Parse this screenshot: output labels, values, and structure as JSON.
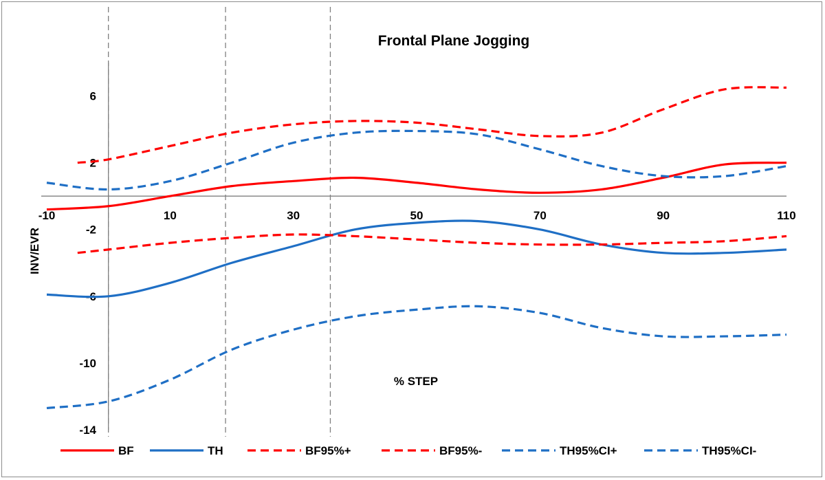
{
  "chart_data": {
    "type": "line",
    "title": "Frontal Plane Jogging",
    "xlabel": "% STEP",
    "ylabel": "INV/EVR",
    "xlim": [
      -10,
      110
    ],
    "ylim": [
      -14,
      8
    ],
    "x_ticks": [
      -10,
      10,
      30,
      50,
      70,
      90,
      110
    ],
    "x_tick_labels": [
      "-10",
      "10",
      "30",
      "50",
      "70",
      "90",
      "110"
    ],
    "y_ticks": [
      6,
      2,
      -2,
      -6,
      -10,
      -14
    ],
    "y_tick_labels": [
      "6",
      "2",
      "-2",
      "-6",
      "-10",
      "-14"
    ],
    "vertical_markers": [
      0,
      19,
      36
    ],
    "grid": false,
    "legend_position": "bottom",
    "series": [
      {
        "name": "BF",
        "color": "#ff0000",
        "dash": "solid",
        "x": [
          -10,
          0,
          10,
          20,
          30,
          40,
          50,
          60,
          70,
          80,
          90,
          100,
          110
        ],
        "y": [
          -0.8,
          -0.6,
          0.0,
          0.6,
          0.9,
          1.1,
          0.8,
          0.4,
          0.2,
          0.4,
          1.1,
          1.9,
          2.0
        ]
      },
      {
        "name": "TH",
        "color": "#1f6fc5",
        "dash": "solid",
        "x": [
          -10,
          0,
          10,
          20,
          30,
          40,
          50,
          60,
          70,
          80,
          90,
          100,
          110
        ],
        "y": [
          -5.9,
          -6.0,
          -5.2,
          -4.0,
          -3.0,
          -2.0,
          -1.6,
          -1.5,
          -2.0,
          -2.9,
          -3.4,
          -3.4,
          -3.2
        ]
      },
      {
        "name": "BF95%+",
        "color": "#ff0000",
        "dash": "dash",
        "x": [
          -5,
          0,
          10,
          20,
          30,
          40,
          50,
          60,
          70,
          80,
          90,
          100,
          110
        ],
        "y": [
          2.0,
          2.2,
          3.0,
          3.8,
          4.3,
          4.5,
          4.4,
          4.0,
          3.6,
          3.8,
          5.2,
          6.4,
          6.5
        ]
      },
      {
        "name": "BF95%-",
        "color": "#ff0000",
        "dash": "dash",
        "x": [
          -5,
          0,
          10,
          20,
          30,
          40,
          50,
          60,
          70,
          80,
          90,
          100,
          110
        ],
        "y": [
          -3.4,
          -3.2,
          -2.8,
          -2.5,
          -2.3,
          -2.4,
          -2.6,
          -2.8,
          -2.9,
          -2.9,
          -2.8,
          -2.7,
          -2.4
        ]
      },
      {
        "name": "TH95%CI+",
        "color": "#1f6fc5",
        "dash": "dash",
        "x": [
          -10,
          0,
          10,
          20,
          30,
          40,
          50,
          60,
          70,
          80,
          90,
          100,
          110
        ],
        "y": [
          0.8,
          0.4,
          0.9,
          2.0,
          3.2,
          3.8,
          3.9,
          3.7,
          2.8,
          1.8,
          1.2,
          1.2,
          1.8
        ]
      },
      {
        "name": "TH95%CI-",
        "color": "#1f6fc5",
        "dash": "dash",
        "x": [
          -10,
          0,
          10,
          20,
          30,
          40,
          50,
          60,
          70,
          80,
          90,
          100,
          110
        ],
        "y": [
          -12.7,
          -12.3,
          -11.0,
          -9.2,
          -8.0,
          -7.2,
          -6.8,
          -6.6,
          -7.0,
          -7.9,
          -8.4,
          -8.4,
          -8.3
        ]
      }
    ]
  }
}
